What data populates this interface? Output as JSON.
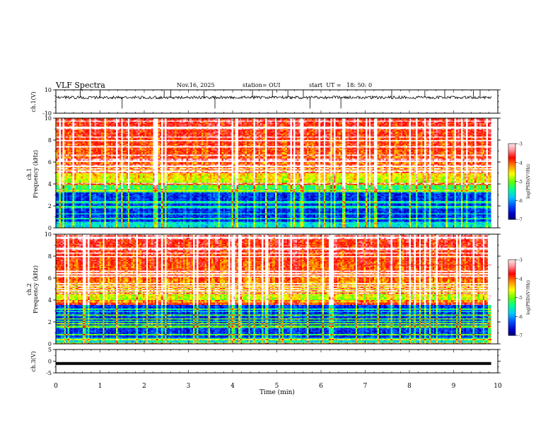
{
  "header": {
    "title": "VLF Spectra",
    "date": "Nov.16, 2025",
    "station": "station= OUI",
    "start": "start  UT =   18: 50: 0"
  },
  "chart_data": [
    {
      "id": "ch1v",
      "type": "line",
      "ylabel": "ch.1(V)",
      "ylim": [
        -10,
        10
      ],
      "yticks": [
        -10,
        10
      ],
      "xlim": [
        0,
        10
      ],
      "baseline": 3.5,
      "noise": 1.2,
      "spike_times": [
        0.55,
        1.0,
        1.5,
        2.45,
        2.6,
        3.35,
        3.6,
        4.45,
        4.9,
        5.25,
        5.6,
        5.75,
        6.45,
        7.6,
        8.35,
        8.8,
        9.45,
        9.6
      ]
    },
    {
      "id": "ch1",
      "type": "heatmap",
      "ylabel": "ch.1\nFrequency  (kHz)",
      "ylabel_lines": [
        "ch.1",
        "Frequency  (kHz)"
      ],
      "ylim": [
        0,
        10
      ],
      "yticks": [
        0,
        2,
        4,
        6,
        8,
        10
      ],
      "xlim": [
        0,
        10
      ],
      "colorbar": {
        "label": "log(PSD)(V²/Hz)",
        "range": [
          -7,
          -3
        ],
        "ticks": [
          -3,
          -4,
          -5,
          -6,
          -7
        ]
      },
      "dark_band_khz": [
        0.5,
        3.2
      ],
      "horizontal_tone_khz": 7.2,
      "tone_start_min": 6.5
    },
    {
      "id": "ch2",
      "type": "heatmap",
      "ylabel": "ch.2\nFrequency  (kHz)",
      "ylabel_lines": [
        "ch.2",
        "Frequency  (kHz)"
      ],
      "ylim": [
        0,
        10
      ],
      "yticks": [
        0,
        2,
        4,
        6,
        8,
        10
      ],
      "xlim": [
        0,
        10
      ],
      "colorbar": {
        "label": "log(PSD)(V²/Hz)",
        "range": [
          -7,
          -3
        ],
        "ticks": [
          -3,
          -4,
          -5,
          -6,
          -7
        ]
      },
      "dark_band_khz": [
        0.5,
        3.5
      ],
      "horizontal_tone_khz": 7.2,
      "tone_start_min": 7.0
    },
    {
      "id": "ch3v",
      "type": "line",
      "ylabel": "ch.3(V)",
      "ylim": [
        -5,
        5
      ],
      "yticks": [
        -5,
        0,
        5
      ],
      "xlim": [
        0,
        10
      ],
      "value": -1.0
    }
  ],
  "xaxis": {
    "label": "Time  (min)",
    "ticks": [
      "0",
      "1",
      "2",
      "3",
      "4",
      "5",
      "6",
      "7",
      "8",
      "9",
      "10"
    ],
    "data_end_min": 9.85
  },
  "colors": {
    "colormap": [
      "#000060",
      "#0000c8",
      "#0050ff",
      "#00c8ff",
      "#00ff96",
      "#64ff00",
      "#ffff00",
      "#ff8c00",
      "#ff0000",
      "#ff96a0",
      "#ffffff"
    ]
  }
}
